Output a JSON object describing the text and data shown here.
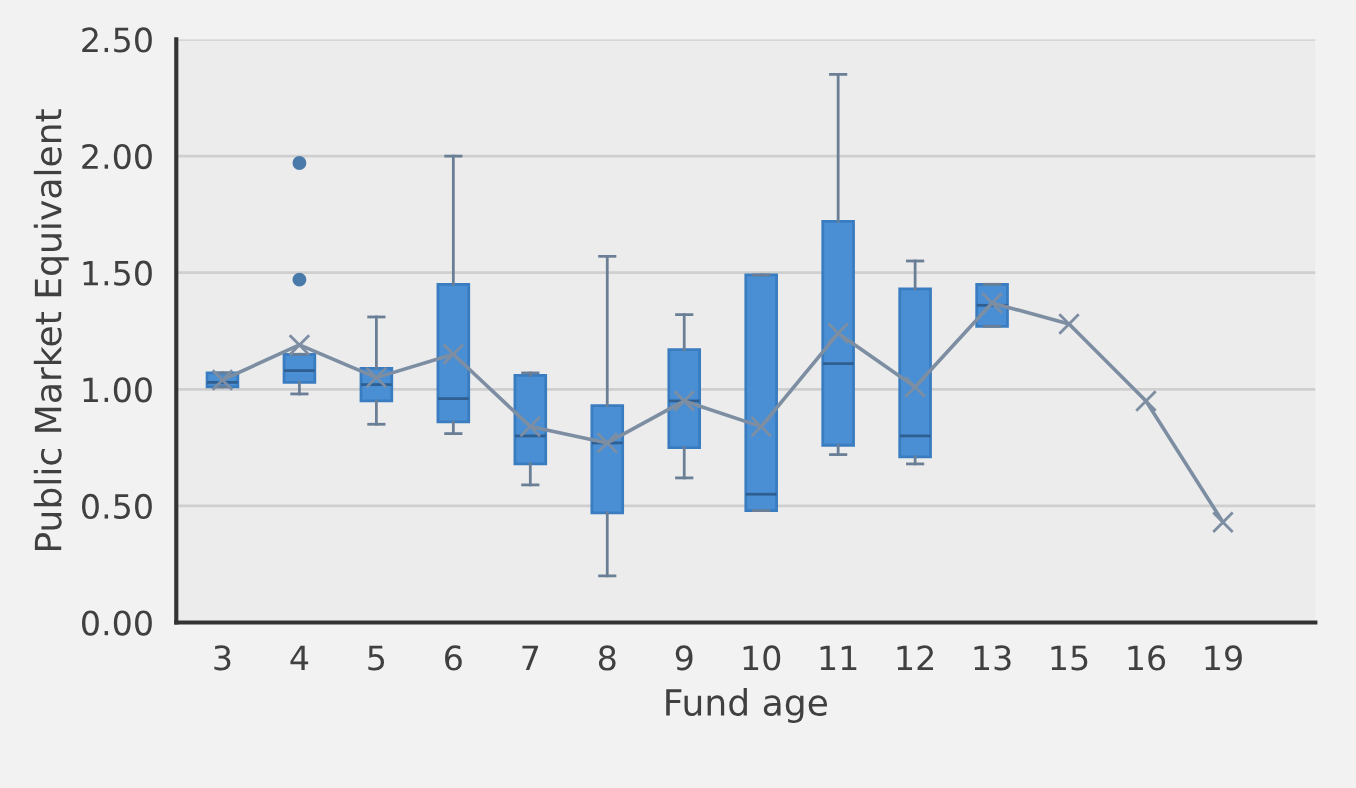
{
  "chart_data": {
    "type": "box",
    "xlabel": "Fund age",
    "ylabel": "Public Market Equivalent",
    "categories": [
      "3",
      "4",
      "5",
      "6",
      "7",
      "8",
      "9",
      "10",
      "11",
      "12",
      "13",
      "15",
      "16",
      "19"
    ],
    "color": "#4a8fd4",
    "boxes": [
      {
        "low": 1.01,
        "q1": 1.01,
        "median": 1.03,
        "q3": 1.07,
        "high": 1.07
      },
      {
        "low": 0.98,
        "q1": 1.03,
        "median": 1.08,
        "q3": 1.15,
        "high": 1.15,
        "outliers": [
          1.47,
          1.97
        ]
      },
      {
        "low": 0.85,
        "q1": 0.95,
        "median": 1.02,
        "q3": 1.09,
        "high": 1.31
      },
      {
        "low": 0.81,
        "q1": 0.86,
        "median": 0.96,
        "q3": 1.45,
        "high": 2.0
      },
      {
        "low": 0.59,
        "q1": 0.68,
        "median": 0.8,
        "q3": 1.06,
        "high": 1.07
      },
      {
        "low": 0.2,
        "q1": 0.47,
        "median": 0.77,
        "q3": 0.93,
        "high": 1.57
      },
      {
        "low": 0.62,
        "q1": 0.75,
        "median": 0.95,
        "q3": 1.17,
        "high": 1.32
      },
      {
        "low": 0.48,
        "q1": 0.48,
        "median": 0.55,
        "q3": 1.49,
        "high": 1.49
      },
      {
        "low": 0.72,
        "q1": 0.76,
        "median": 1.11,
        "q3": 1.72,
        "high": 2.35
      },
      {
        "low": 0.68,
        "q1": 0.71,
        "median": 0.8,
        "q3": 1.43,
        "high": 1.55
      },
      {
        "low": 1.27,
        "q1": 1.27,
        "median": 1.36,
        "q3": 1.45,
        "high": 1.45
      },
      null,
      null,
      null
    ],
    "series": [
      {
        "type": "line",
        "color": "#7d8ea3",
        "marker": "cross",
        "values": [
          1.04,
          1.19,
          1.05,
          1.15,
          0.84,
          0.77,
          0.95,
          0.84,
          1.24,
          1.01,
          1.37,
          1.28,
          0.95,
          0.43
        ]
      }
    ],
    "ylim": [
      0,
      2.5
    ],
    "yticks": [
      {
        "value": 0,
        "label": "0.00"
      },
      {
        "value": 0.5,
        "label": "0.50"
      },
      {
        "value": 1,
        "label": "1.00"
      },
      {
        "value": 1.5,
        "label": "1.50"
      },
      {
        "value": 2,
        "label": "2.00"
      },
      {
        "value": 2.5,
        "label": "2.50"
      }
    ],
    "grid": "y"
  }
}
